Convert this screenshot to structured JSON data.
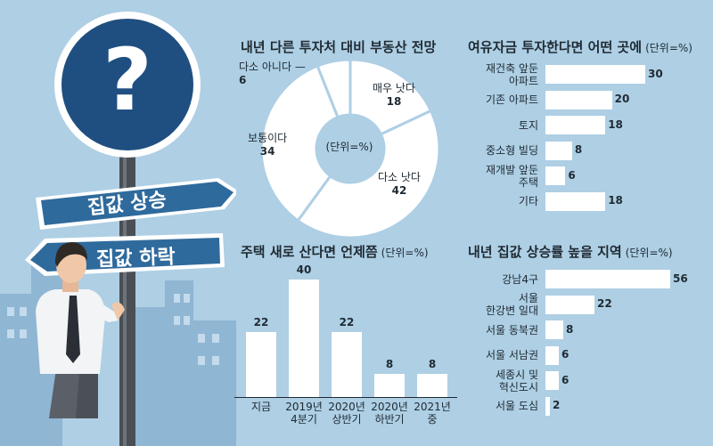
{
  "illustration": {
    "question_mark": "?",
    "sign_up": "집값 상승",
    "sign_down": "집값 하락"
  },
  "chart_data": [
    {
      "type": "pie",
      "title": "내년 다른 투자처 대비 부동산 전망",
      "center_label": "(단위=%)",
      "slices": [
        {
          "label": "매우 낫다",
          "value": 18
        },
        {
          "label": "다소 낫다",
          "value": 42
        },
        {
          "label": "보통이다",
          "value": 34
        },
        {
          "label": "다소 아니다",
          "value": 6
        }
      ]
    },
    {
      "type": "bar",
      "orientation": "horizontal",
      "title": "여유자금 투자한다면 어떤 곳에",
      "unit": "(단위=%)",
      "categories": [
        "재건축 앞둔\n아파트",
        "기존 아파트",
        "토지",
        "중소형 빌딩",
        "재개발 앞둔\n주택",
        "기타"
      ],
      "values": [
        30,
        20,
        18,
        8,
        6,
        18
      ]
    },
    {
      "type": "bar",
      "orientation": "vertical",
      "title": "주택 새로 산다면 언제쯤",
      "unit": "(단위=%)",
      "categories": [
        "지금",
        "2019년\n4분기",
        "2020년\n상반기",
        "2020년\n하반기",
        "2021년\n중"
      ],
      "values": [
        22,
        40,
        22,
        8,
        8
      ]
    },
    {
      "type": "bar",
      "orientation": "horizontal",
      "title": "내년 집값 상승률 높을 지역",
      "unit": "(단위=%)",
      "categories": [
        "강남4구",
        "서울\n한강변 일대",
        "서울 동북권",
        "서울 서남권",
        "세종시 및\n혁신도시",
        "서울 도심"
      ],
      "values": [
        56,
        22,
        8,
        6,
        6,
        2
      ]
    }
  ],
  "colors": {
    "background": "#aecfe4",
    "bar": "#ffffff",
    "sign_blue": "#2f6a9c",
    "sign_circle": "#1f4f80",
    "text": "#1f2a33"
  }
}
